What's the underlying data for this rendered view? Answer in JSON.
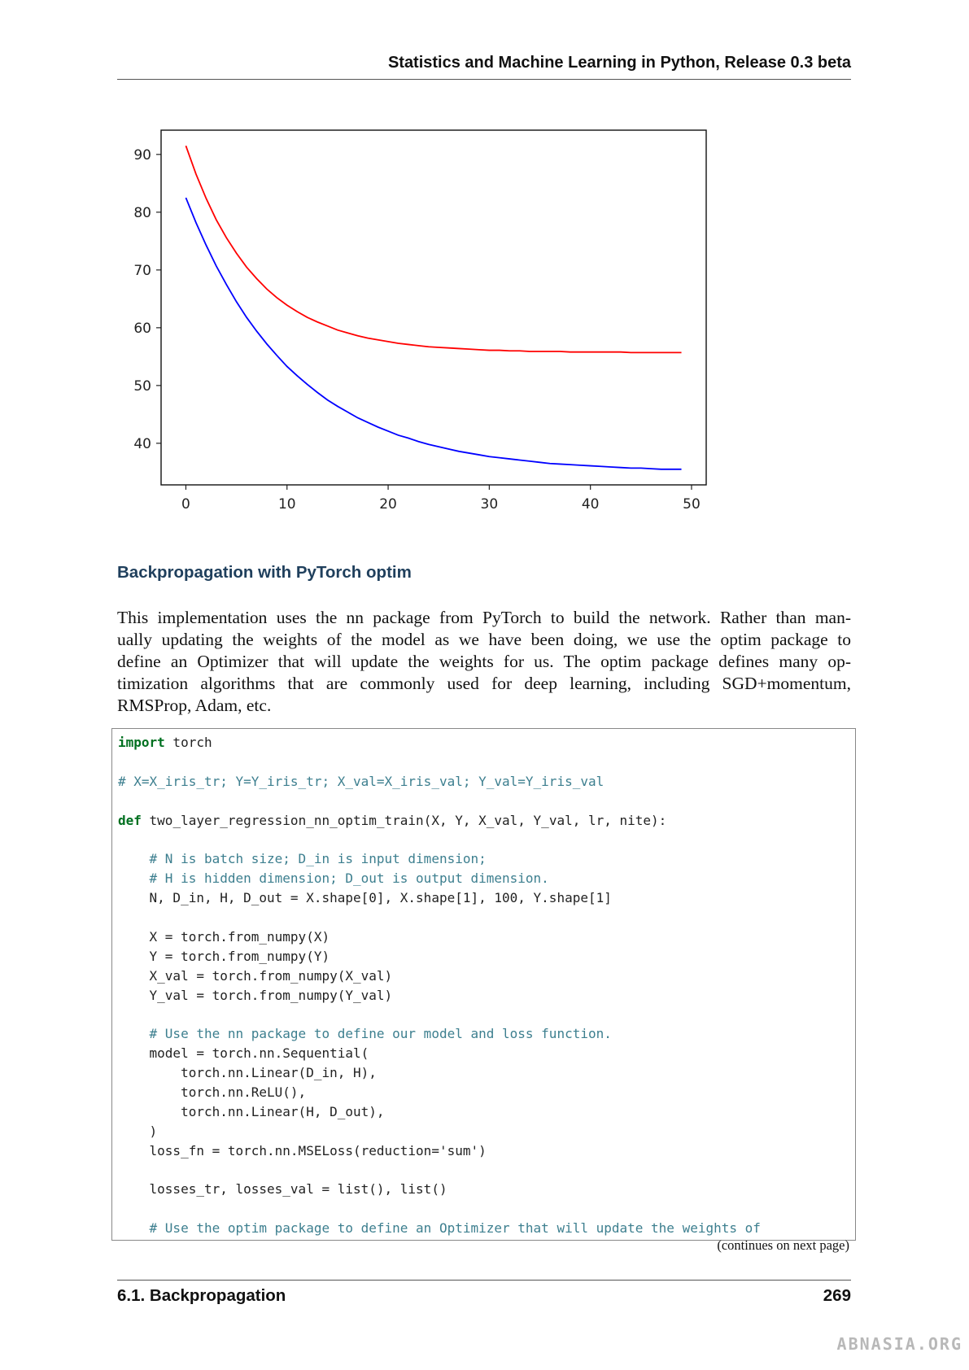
{
  "header": {
    "title": "Statistics and Machine Learning in Python, Release 0.3 beta"
  },
  "chart_data": {
    "type": "line",
    "x": [
      0,
      1,
      2,
      3,
      4,
      5,
      6,
      7,
      8,
      9,
      10,
      11,
      12,
      13,
      14,
      15,
      16,
      17,
      18,
      19,
      20,
      21,
      22,
      23,
      24,
      25,
      26,
      27,
      28,
      29,
      30,
      31,
      32,
      33,
      34,
      35,
      36,
      37,
      38,
      39,
      40,
      41,
      42,
      43,
      44,
      45,
      46,
      47,
      48,
      49
    ],
    "series": [
      {
        "color": "#ff0000",
        "values": [
          91.5,
          86.6,
          82.4,
          78.7,
          75.6,
          72.9,
          70.5,
          68.5,
          66.7,
          65.2,
          63.9,
          62.8,
          61.8,
          61.0,
          60.3,
          59.6,
          59.1,
          58.6,
          58.2,
          57.9,
          57.6,
          57.3,
          57.1,
          56.9,
          56.7,
          56.6,
          56.5,
          56.4,
          56.3,
          56.2,
          56.1,
          56.1,
          56.0,
          56.0,
          55.9,
          55.9,
          55.9,
          55.9,
          55.8,
          55.8,
          55.8,
          55.8,
          55.8,
          55.8,
          55.7,
          55.7,
          55.7,
          55.7,
          55.7,
          55.7
        ]
      },
      {
        "color": "#0000ff",
        "values": [
          82.5,
          78.2,
          74.3,
          70.7,
          67.5,
          64.5,
          61.8,
          59.4,
          57.2,
          55.2,
          53.3,
          51.7,
          50.2,
          48.8,
          47.5,
          46.4,
          45.4,
          44.4,
          43.6,
          42.8,
          42.1,
          41.4,
          40.9,
          40.3,
          39.8,
          39.4,
          39.0,
          38.6,
          38.3,
          38.0,
          37.7,
          37.5,
          37.3,
          37.1,
          36.9,
          36.7,
          36.5,
          36.4,
          36.3,
          36.2,
          36.1,
          36.0,
          35.9,
          35.8,
          35.7,
          35.7,
          35.6,
          35.5,
          35.5,
          35.5
        ]
      }
    ],
    "xlim": [
      -2.45,
      51.45
    ],
    "ylim": [
      32.8,
      94.2
    ],
    "xticks": [
      0,
      10,
      20,
      30,
      40,
      50
    ],
    "yticks": [
      40,
      50,
      60,
      70,
      80,
      90
    ],
    "grid": false
  },
  "section": {
    "heading": "Backpropagation with PyTorch optim"
  },
  "paragraph": {
    "lines": [
      "This implementation uses the nn package from PyTorch to build the network. Rather than man-",
      "ually updating the weights of the model as we have been doing, we use the optim package to",
      "define an Optimizer that will update the weights for us. The optim package defines many op-",
      "timization algorithms that are commonly used for deep learning, including SGD+momentum,",
      "RMSProp, Adam, etc."
    ]
  },
  "code": {
    "blocks": [
      [
        "import torch"
      ],
      [
        "# X=X_iris_tr; Y=Y_iris_tr; X_val=X_iris_val; Y_val=Y_iris_val"
      ],
      [
        "def two_layer_regression_nn_optim_train(X, Y, X_val, Y_val, lr, nite):"
      ],
      [
        "    # N is batch size; D_in is input dimension;",
        "    # H is hidden dimension; D_out is output dimension.",
        "    N, D_in, H, D_out = X.shape[0], X.shape[1], 100, Y.shape[1]"
      ],
      [
        "    X = torch.from_numpy(X)",
        "    Y = torch.from_numpy(Y)",
        "    X_val = torch.from_numpy(X_val)",
        "    Y_val = torch.from_numpy(Y_val)"
      ],
      [
        "    # Use the nn package to define our model and loss function.",
        "    model = torch.nn.Sequential(",
        "        torch.nn.Linear(D_in, H),",
        "        torch.nn.ReLU(),",
        "        torch.nn.Linear(H, D_out),",
        "    )",
        "    loss_fn = torch.nn.MSELoss(reduction='sum')"
      ],
      [
        "    losses_tr, losses_val = list(), list()"
      ],
      [
        "    # Use the optim package to define an Optimizer that will update the weights of"
      ]
    ],
    "continuation": "(continues on next page)"
  },
  "footer": {
    "section": "6.1.  Backpropagation",
    "page": "269"
  },
  "watermark": "ABNASIA.ORG"
}
